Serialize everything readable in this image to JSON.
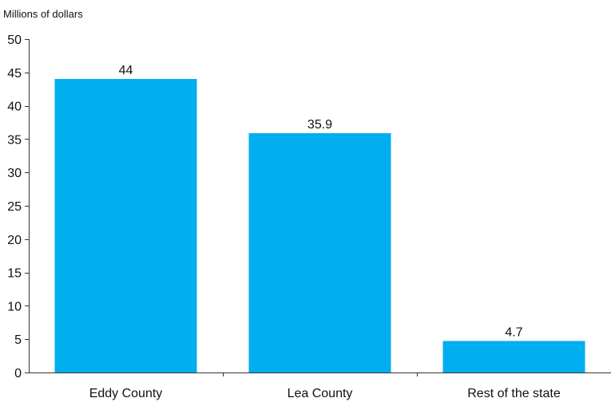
{
  "chart_data": {
    "type": "bar",
    "title": "",
    "ylabel": "Millions of dollars",
    "xlabel": "",
    "categories": [
      "Eddy County",
      "Lea County",
      "Rest of the state"
    ],
    "values": [
      44,
      35.9,
      4.7
    ],
    "data_labels": [
      "44",
      "35.9",
      "4.7"
    ],
    "ylim": [
      0,
      50
    ],
    "yticks": [
      "0",
      "5",
      "10",
      "15",
      "20",
      "25",
      "30",
      "35",
      "40",
      "45",
      "50"
    ],
    "grid": false,
    "legend": "none",
    "bar_color": "#00AEEF"
  }
}
